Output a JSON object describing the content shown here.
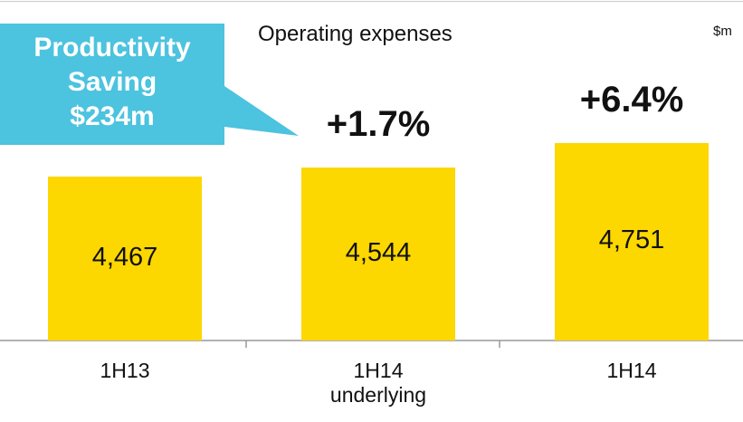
{
  "chart_data": {
    "type": "bar",
    "title": "Operating expenses",
    "unit": "$m",
    "categories": [
      "1H13",
      "1H14 underlying",
      "1H14"
    ],
    "values": [
      4467,
      4544,
      4751
    ],
    "value_labels": [
      "4,467",
      "4,544",
      "4,751"
    ],
    "color": "#fcd700",
    "ylim": [
      3080,
      5200
    ],
    "annotations": [
      "+1.7%",
      "+6.4%"
    ],
    "callout": [
      "Productivity",
      "Saving",
      "$234m"
    ]
  }
}
